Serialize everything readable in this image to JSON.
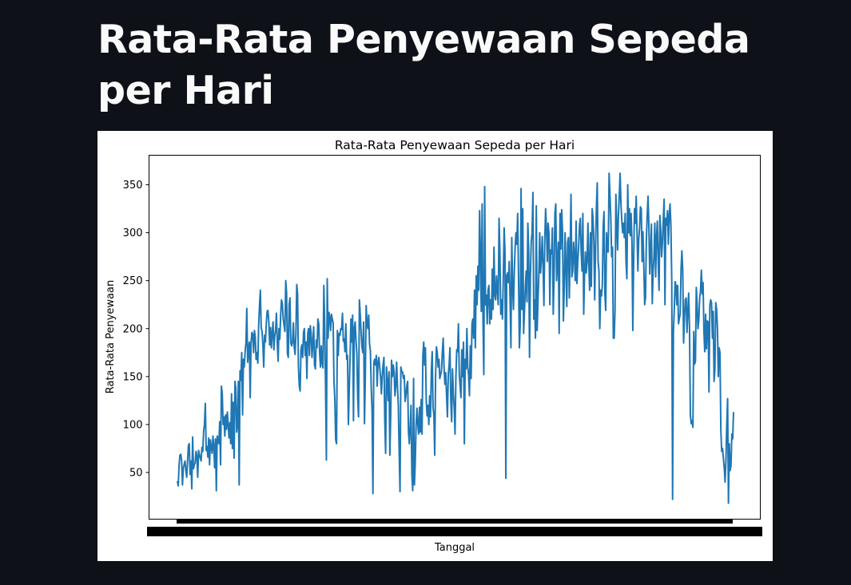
{
  "page": {
    "title": "Rata-Rata Penyewaan Sepeda per Hari"
  },
  "colors": {
    "background": "#0e1117",
    "line": "#1f77b4",
    "figure": "#ffffff"
  },
  "chart_data": {
    "type": "line",
    "title": "Rata-Rata Penyewaan Sepeda per Hari",
    "xlabel": "Tanggal",
    "ylabel": "Rata-Rata Penyewaan",
    "x_ticks_note": "x tick labels (one date per day) overlap into an unreadable solid band",
    "ylim": [
      12,
      375
    ],
    "yticks": [
      50,
      100,
      150,
      200,
      250,
      300,
      350
    ],
    "grid": false,
    "series": [
      {
        "values": [
          41,
          36,
          58,
          68,
          69,
          62,
          37,
          55,
          58,
          62,
          52,
          45,
          61,
          78,
          80,
          48,
          62,
          33,
          87,
          54,
          58,
          60,
          72,
          67,
          45,
          73,
          69,
          65,
          62,
          76,
          72,
          93,
          100,
          122,
          73,
          77,
          66,
          86,
          58,
          84,
          76,
          70,
          88,
          78,
          55,
          85,
          31,
          88,
          85,
          80,
          103,
          58,
          140,
          132,
          100,
          108,
          88,
          110,
          95,
          113,
          100,
          86,
          102,
          80,
          132,
          75,
          123,
          65,
          145,
          138,
          92,
          99,
          145,
          37,
          156,
          146,
          175,
          110,
          168,
          160,
          176,
          185,
          221,
          165,
          178,
          186,
          128,
          185,
          196,
          194,
          175,
          198,
          191,
          168,
          175,
          164,
          203,
          224,
          240,
          201,
          197,
          183,
          160,
          193,
          186,
          205,
          218,
          219,
          207,
          183,
          201,
          180,
          195,
          207,
          178,
          192,
          198,
          216,
          186,
          166,
          200,
          189,
          214,
          230,
          226,
          210,
          204,
          197,
          250,
          237,
          174,
          170,
          225,
          232,
          185,
          182,
          186,
          206,
          181,
          173,
          194,
          246,
          235,
          160,
          140,
          135,
          178,
          183,
          170,
          196,
          200,
          172,
          186,
          148,
          195,
          200,
          172,
          203,
          195,
          170,
          185,
          202,
          162,
          158,
          188,
          180,
          210,
          205,
          175,
          160,
          182,
          164,
          159,
          245,
          205,
          142,
          63,
          252,
          190,
          217,
          212,
          198,
          215,
          210,
          206,
          145,
          126,
          84,
          80,
          198,
          172,
          195,
          193,
          200,
          199,
          216,
          187,
          189,
          176,
          205,
          168,
          172,
          100,
          136,
          170,
          210,
          186,
          214,
          104,
          201,
          207,
          188,
          174,
          128,
          108,
          230,
          215,
          197,
          181,
          175,
          207,
          101,
          150,
          224,
          205,
          200,
          214,
          184,
          177,
          138,
          115,
          28,
          164,
          168,
          162,
          172,
          140,
          165,
          170,
          160,
          150,
          132,
          150,
          162,
          170,
          104,
          70,
          160,
          145,
          125,
          155,
          68,
          110,
          167,
          150,
          162,
          155,
          130,
          140,
          165,
          140,
          120,
          72,
          30,
          160,
          155,
          155,
          148,
          151,
          124,
          131,
          140,
          145,
          92,
          80,
          98,
          120,
          48,
          31,
          148,
          37,
          60,
          100,
          117,
          100,
          90,
          118,
          92,
          126,
          90,
          172,
          186,
          162,
          180,
          125,
          109,
          120,
          100,
          130,
          108,
          155,
          176,
          118,
          110,
          68,
          150,
          181,
          175,
          160,
          168,
          148,
          152,
          156,
          175,
          190,
          160,
          142,
          154,
          130,
          108,
          152,
          162,
          180,
          125,
          103,
          158,
          132,
          118,
          90,
          150,
          178,
          176,
          205,
          153,
          140,
          128,
          178,
          150,
          186,
          80,
          168,
          158,
          200,
          160,
          152,
          130,
          182,
          148,
          205,
          210,
          190,
          240,
          180,
          255,
          225,
          265,
          240,
          323,
          275,
          218,
          330,
          210,
          152,
          348,
          225,
          235,
          205,
          240,
          245,
          205,
          230,
          210,
          262,
          220,
          285,
          235,
          230,
          255,
          240,
          225,
          315,
          280,
          215,
          230,
          210,
          252,
          305,
          280,
          44,
          255,
          258,
          248,
          270,
          232,
          180,
          295,
          245,
          220,
          260,
          285,
          300,
          288,
          320,
          255,
          180,
          205,
          346,
          220,
          325,
          195,
          218,
          242,
          260,
          228,
          310,
          280,
          170,
          255,
          290,
          300,
          342,
          210,
          230,
          190,
          328,
          198,
          230,
          256,
          300,
          258,
          272,
          296,
          265,
          224,
          292,
          325,
          305,
          270,
          310,
          298,
          225,
          282,
          278,
          305,
          215,
          255,
          320,
          330,
          250,
          270,
          290,
          195,
          320,
          283,
          324,
          301,
          208,
          243,
          300,
          265,
          223,
          290,
          295,
          232,
          283,
          340,
          254,
          260,
          290,
          275,
          250,
          312,
          247,
          270,
          285,
          307,
          315,
          280,
          260,
          320,
          215,
          257,
          280,
          258,
          270,
          310,
          268,
          240,
          300,
          244,
          325,
          315,
          290,
          230,
          285,
          326,
          352,
          270,
          260,
          200,
          240,
          234,
          245,
          306,
          322,
          236,
          219,
          300,
          280,
          280,
          362,
          340,
          315,
          275,
          285,
          190,
          190,
          220,
          340,
          310,
          282,
          318,
          338,
          362,
          330,
          313,
          300,
          310,
          295,
          320,
          270,
          252,
          350,
          300,
          325,
          297,
          320,
          290,
          198,
          270,
          325,
          310,
          338,
          300,
          260,
          293,
          305,
          327,
          325,
          270,
          301,
          266,
          225,
          232,
          292,
          318,
          338,
          306,
          257,
          283,
          309,
          226,
          260,
          275,
          310,
          254,
          295,
          312,
          270,
          240,
          318,
          302,
          275,
          290,
          313,
          335,
          225,
          315,
          308,
          323,
          288,
          318,
          330,
          308,
          250,
          22,
          197,
          220,
          249,
          245,
          225,
          245,
          205,
          211,
          215,
          262,
          281,
          260,
          185,
          210,
          230,
          232,
          196,
          218,
          237,
          200,
          110,
          101,
          104,
          97,
          197,
          163,
          166,
          243,
          225,
          200,
          210,
          232,
          239,
          261,
          236,
          248,
          197,
          176,
          215,
          179,
          208,
          207,
          134,
          224,
          230,
          227,
          190,
          218,
          145,
          158,
          227,
          220,
          200,
          150,
          180,
          175,
          95,
          72,
          75,
          65,
          55,
          40,
          62,
          100,
          127,
          18,
          80,
          52,
          57,
          90,
          85,
          113
        ]
      }
    ]
  }
}
